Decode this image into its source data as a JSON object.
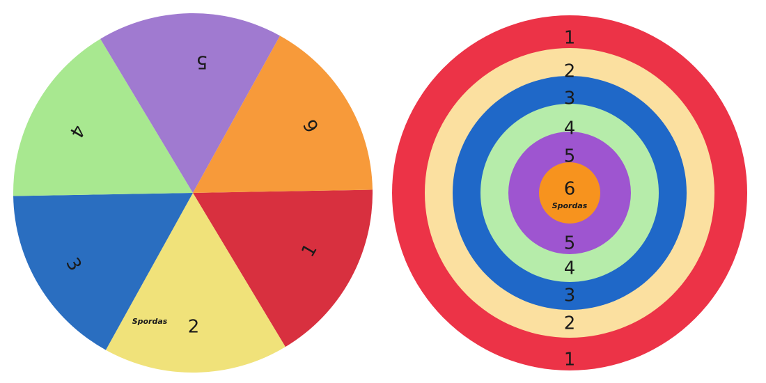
{
  "left_disc": {
    "segments": [
      {
        "label": "1"
      },
      {
        "label": "2"
      },
      {
        "label": "3"
      },
      {
        "label": "4"
      },
      {
        "label": "5"
      },
      {
        "label": "6"
      }
    ],
    "brand": "Spordas"
  },
  "right_disc": {
    "rings_top": [
      "1",
      "2",
      "3",
      "4",
      "5"
    ],
    "center": "6",
    "brand": "Spordas",
    "rings_bottom": [
      "5",
      "4",
      "3",
      "2",
      "1"
    ]
  }
}
